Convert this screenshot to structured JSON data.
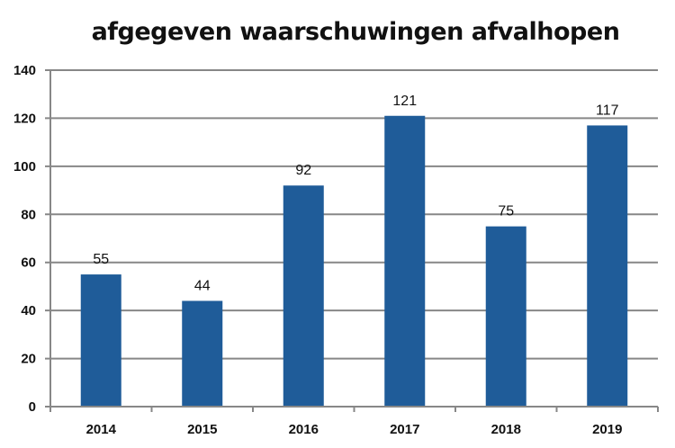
{
  "chart_data": {
    "type": "bar",
    "title": "afgegeven waarschuwingen afvalhopen",
    "xlabel": "",
    "ylabel": "",
    "categories": [
      "2014",
      "2015",
      "2016",
      "2017",
      "2018",
      "2019"
    ],
    "values": [
      55,
      44,
      92,
      121,
      75,
      117
    ],
    "data_labels": [
      "55",
      "44",
      "92",
      "121",
      "75",
      "117"
    ],
    "ylim": [
      0,
      140
    ],
    "yticks": [
      0,
      20,
      40,
      60,
      80,
      100,
      120,
      140
    ],
    "grid": true,
    "legend": "none",
    "bar_color": "#1f5c99",
    "grid_color": "#878787"
  }
}
